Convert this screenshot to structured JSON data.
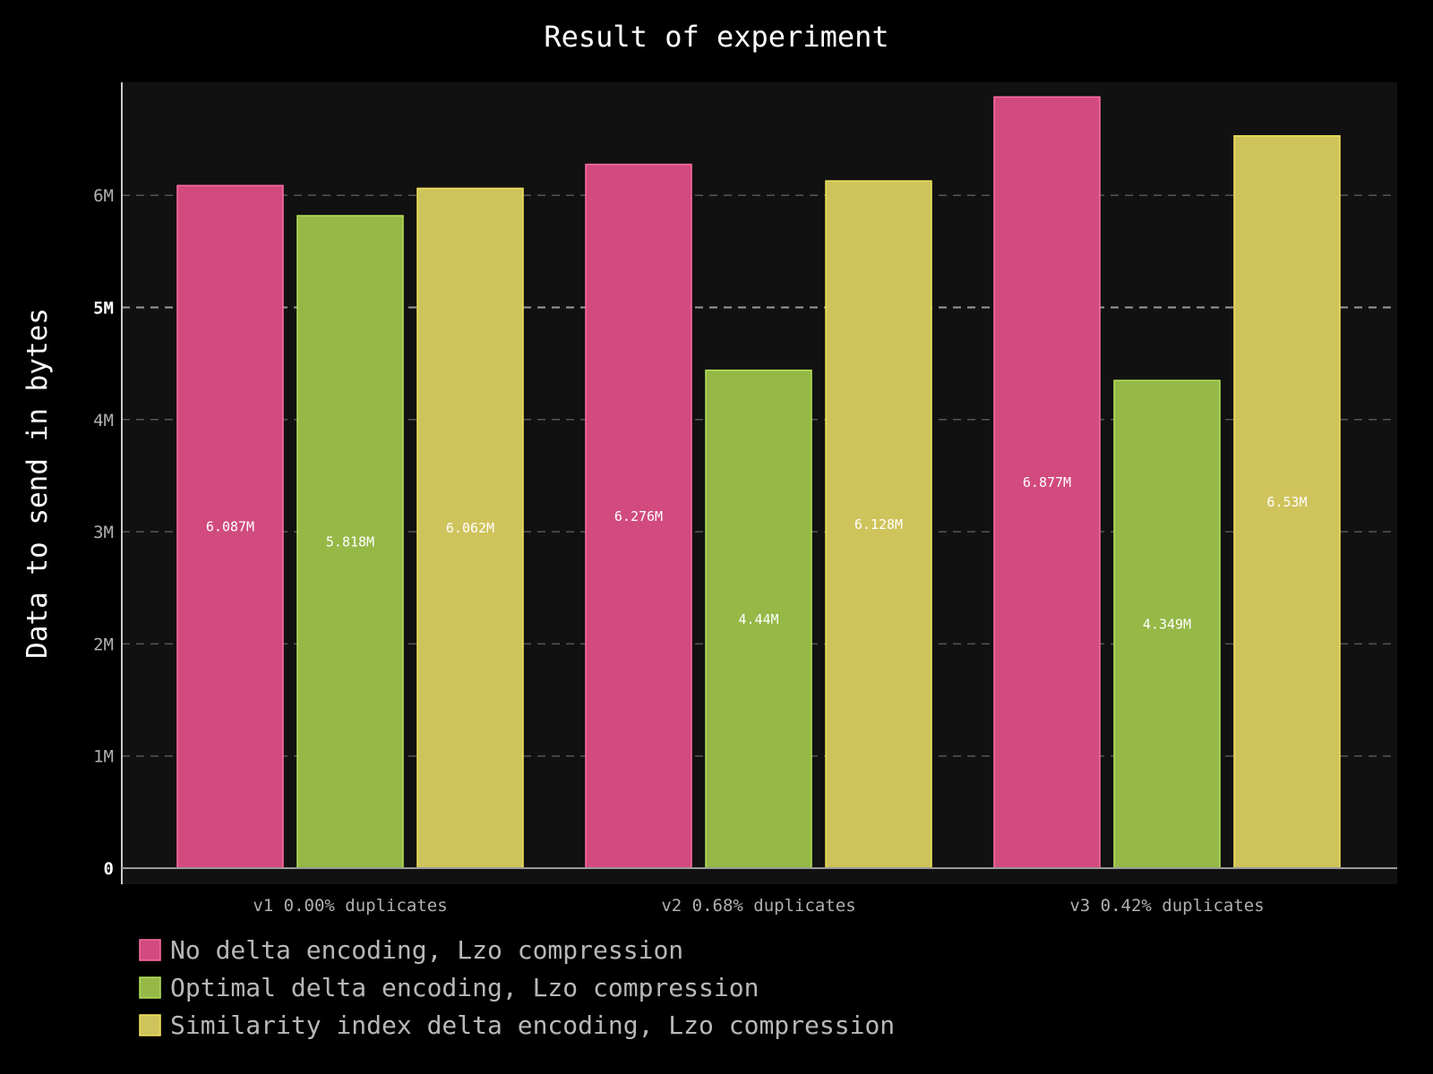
{
  "chart_data": {
    "type": "bar",
    "title": "Result of experiment",
    "xlabel": "",
    "ylabel": "Data to send in bytes",
    "categories": [
      "v1 0.00% duplicates",
      "v2 0.68% duplicates",
      "v3 0.42% duplicates"
    ],
    "series": [
      {
        "name": "No delta encoding, Lzo compression",
        "values": [
          6087000,
          6276000,
          6877000
        ],
        "labels": [
          "6.087M",
          "6.276M",
          "6.877M"
        ],
        "color": "#d14b7e",
        "stroke": "#ff6ea4"
      },
      {
        "name": "Optimal delta encoding, Lzo compression",
        "values": [
          5818000,
          4440000,
          4349000
        ],
        "labels": [
          "5.818M",
          "4.44M",
          "4.349M"
        ],
        "color": "#95b847",
        "stroke": "#b6e35a"
      },
      {
        "name": "Similarity index delta encoding, Lzo compression",
        "values": [
          6062000,
          6128000,
          6530000
        ],
        "labels": [
          "6.062M",
          "6.128M",
          "6.53M"
        ],
        "color": "#cfc35b",
        "stroke": "#f2e45c"
      }
    ],
    "yticks": [
      {
        "value": 0,
        "label": "0",
        "major": true
      },
      {
        "value": 1000000,
        "label": "1M",
        "major": false
      },
      {
        "value": 2000000,
        "label": "2M",
        "major": false
      },
      {
        "value": 3000000,
        "label": "3M",
        "major": false
      },
      {
        "value": 4000000,
        "label": "4M",
        "major": false
      },
      {
        "value": 5000000,
        "label": "5M",
        "major": true
      },
      {
        "value": 6000000,
        "label": "6M",
        "major": false
      }
    ],
    "ylim": [
      0,
      7000000
    ],
    "grid": true,
    "legend_position": "bottom-left",
    "colors": {
      "background": "#000000",
      "plot_background": "#111111",
      "grid": "#555555",
      "axis": "#cccccc"
    }
  }
}
